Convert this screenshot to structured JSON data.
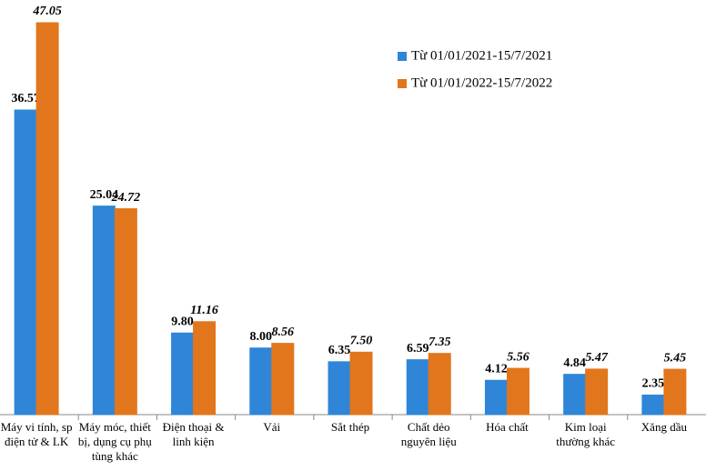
{
  "chart_data": {
    "type": "bar",
    "categories": [
      "Máy vi tính, sp điện tử & LK",
      "Máy móc, thiết bị, dụng cụ phụ tùng khác",
      "Điện thoại & linh kiện",
      "Vải",
      "Sắt thép",
      "Chất dẻo nguyên liệu",
      "Hóa chất",
      "Kim loại thường khác",
      "Xăng dầu"
    ],
    "series": [
      {
        "name": "Từ 01/01/2021-15/7/2021",
        "color": "#2f86d8",
        "values": [
          36.57,
          25.04,
          9.8,
          8,
          6.35,
          6.59,
          4.12,
          4.84,
          2.35
        ],
        "value_labels": [
          "36.57",
          "25.04",
          "9.80",
          "8.00",
          "6.35",
          "6.59",
          "4.12",
          "4.84",
          "2.35"
        ]
      },
      {
        "name": "Từ 01/01/2022-15/7/2022",
        "color": "#e2761c",
        "values": [
          47.05,
          24.72,
          11.16,
          8.56,
          7.5,
          7.35,
          5.56,
          5.47,
          5.45
        ],
        "value_labels": [
          "47.05",
          "24.72",
          "11.16",
          "8.56",
          "7.50",
          "7.35",
          "5.56",
          "5.47",
          "5.45"
        ]
      }
    ]
  }
}
